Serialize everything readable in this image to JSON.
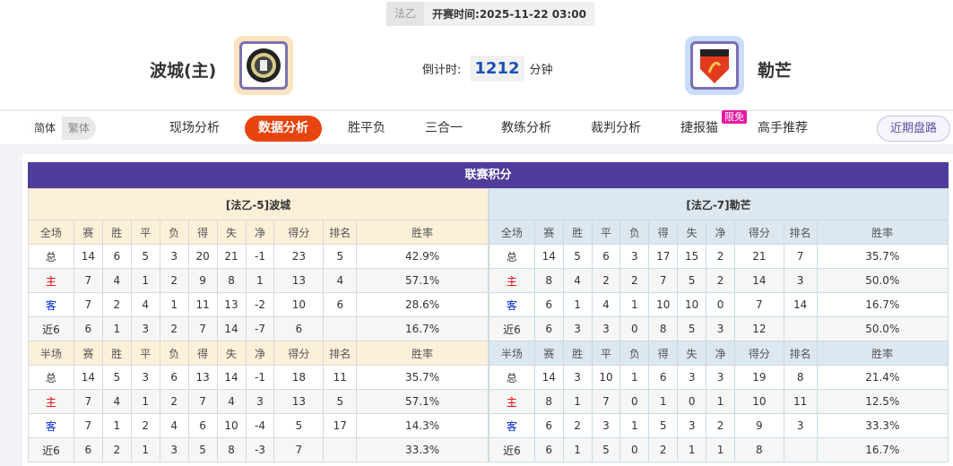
{
  "header": {
    "league": "法乙",
    "kickoff_label": "开赛时间:",
    "kickoff": "2025-11-22 03:00",
    "home": {
      "name": "波城(主)",
      "logo": "pau-fc-crest"
    },
    "away": {
      "name": "勒芒",
      "logo": "le-mans-fc-crest"
    },
    "countdown_label": "倒计时:",
    "countdown_value": "1212",
    "countdown_unit": "分钟"
  },
  "nav": {
    "lang": [
      "简体",
      "繁体"
    ],
    "tabs": [
      "现场分析",
      "数据分析",
      "胜平负",
      "三合一",
      "教练分析",
      "裁判分析",
      "捷报猫",
      "高手推荐"
    ],
    "active": "数据分析",
    "badge": "限免",
    "recent": "近期盘路"
  },
  "colors": {
    "title_bar": "#503c9a",
    "active_tab": "#e8440f",
    "home_header": "#fdf0d9",
    "away_header": "#dde7ef"
  },
  "standings": {
    "title": "联赛积分",
    "columns": [
      "赛",
      "胜",
      "平",
      "负",
      "得",
      "失",
      "净",
      "得分",
      "排名",
      "胜率"
    ],
    "home": {
      "title": "[法乙-5]波城",
      "full": {
        "label": "全场",
        "rows": [
          [
            "总",
            "14",
            "6",
            "5",
            "3",
            "20",
            "21",
            "-1",
            "23",
            "5",
            "42.9%"
          ],
          [
            "主",
            "7",
            "4",
            "1",
            "2",
            "9",
            "8",
            "1",
            "13",
            "4",
            "57.1%"
          ],
          [
            "客",
            "7",
            "2",
            "4",
            "1",
            "11",
            "13",
            "-2",
            "10",
            "6",
            "28.6%"
          ],
          [
            "近6",
            "6",
            "1",
            "3",
            "2",
            "7",
            "14",
            "-7",
            "6",
            "",
            "16.7%"
          ]
        ]
      },
      "half": {
        "label": "半场",
        "rows": [
          [
            "总",
            "14",
            "5",
            "3",
            "6",
            "13",
            "14",
            "-1",
            "18",
            "11",
            "35.7%"
          ],
          [
            "主",
            "7",
            "4",
            "1",
            "2",
            "7",
            "4",
            "3",
            "13",
            "5",
            "57.1%"
          ],
          [
            "客",
            "7",
            "1",
            "2",
            "4",
            "6",
            "10",
            "-4",
            "5",
            "17",
            "14.3%"
          ],
          [
            "近6",
            "6",
            "2",
            "1",
            "3",
            "5",
            "8",
            "-3",
            "7",
            "",
            "33.3%"
          ]
        ]
      }
    },
    "away": {
      "title": "[法乙-7]勒芒",
      "full": {
        "label": "全场",
        "rows": [
          [
            "总",
            "14",
            "5",
            "6",
            "3",
            "17",
            "15",
            "2",
            "21",
            "7",
            "35.7%"
          ],
          [
            "主",
            "8",
            "4",
            "2",
            "2",
            "7",
            "5",
            "2",
            "14",
            "3",
            "50.0%"
          ],
          [
            "客",
            "6",
            "1",
            "4",
            "1",
            "10",
            "10",
            "0",
            "7",
            "14",
            "16.7%"
          ],
          [
            "近6",
            "6",
            "3",
            "3",
            "0",
            "8",
            "5",
            "3",
            "12",
            "",
            "50.0%"
          ]
        ]
      },
      "half": {
        "label": "半场",
        "rows": [
          [
            "总",
            "14",
            "3",
            "10",
            "1",
            "6",
            "3",
            "3",
            "19",
            "8",
            "21.4%"
          ],
          [
            "主",
            "8",
            "1",
            "7",
            "0",
            "1",
            "0",
            "1",
            "10",
            "11",
            "12.5%"
          ],
          [
            "客",
            "6",
            "2",
            "3",
            "1",
            "5",
            "3",
            "2",
            "9",
            "3",
            "33.3%"
          ],
          [
            "近6",
            "6",
            "1",
            "5",
            "0",
            "2",
            "1",
            "1",
            "8",
            "",
            "16.7%"
          ]
        ]
      }
    }
  }
}
